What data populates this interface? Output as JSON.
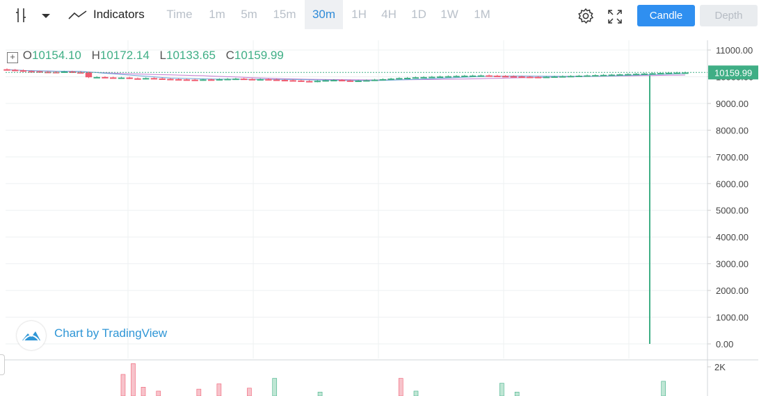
{
  "toolbar": {
    "indicators_label": "Indicators",
    "intervals": [
      "Time",
      "1m",
      "5m",
      "15m",
      "30m",
      "1H",
      "4H",
      "1D",
      "1W",
      "1M"
    ],
    "active_interval": "30m",
    "candle_label": "Candle",
    "depth_label": "Depth"
  },
  "legend": {
    "o_key": "O",
    "o_val": "10154.10",
    "h_key": "H",
    "h_val": "10172.14",
    "l_key": "L",
    "l_val": "10133.65",
    "c_key": "C",
    "c_val": "10159.99"
  },
  "price_axis": {
    "labels": [
      "11000.00",
      "10000.00",
      "9000.00",
      "8000.00",
      "7000.00",
      "6000.00",
      "5000.00",
      "4000.00",
      "3000.00",
      "2000.00",
      "1000.00",
      "0.00"
    ],
    "last_price_label": "10159.99"
  },
  "volume_axis": {
    "label": "2K"
  },
  "branding": {
    "text": "Chart by TradingView"
  },
  "colors": {
    "up": "#3fae85",
    "down": "#ef5a6f",
    "accent": "#2f8ff0",
    "ma1": "#c37bd0",
    "ma2": "#6aa3d8"
  },
  "chart_data": {
    "type": "candlestick",
    "interval": "30m",
    "y_axis": {
      "min": 0,
      "max": 11000
    },
    "last_close": 10159.99,
    "closes": [
      10260,
      10240,
      10210,
      10205,
      10185,
      10180,
      10175,
      10195,
      10170,
      10160,
      9980,
      9990,
      9975,
      9965,
      9970,
      9940,
      9930,
      9950,
      9935,
      9920,
      9910,
      9900,
      9890,
      9880,
      9900,
      9890,
      9910,
      9920,
      9930,
      9915,
      9900,
      9910,
      9895,
      9880,
      9870,
      9860,
      9840,
      9820,
      9850,
      9870,
      9880,
      9860,
      9840,
      9855,
      9870,
      9890,
      9910,
      9930,
      9950,
      9960,
      9980,
      9990,
      10000,
      10010,
      10020,
      10030,
      10040,
      10045,
      10050,
      10040,
      10030,
      10020,
      10010,
      10000,
      9995,
      9990,
      10000,
      10010,
      10020,
      10030,
      10040,
      10050,
      10060,
      10070,
      10080,
      10090,
      10100,
      10110,
      10120,
      10130,
      10140,
      10150,
      10155,
      10160
    ],
    "spike_low": 0,
    "volumes": [
      0,
      0,
      0,
      0,
      0,
      0,
      0,
      0,
      0,
      0,
      0,
      0,
      0,
      0,
      0,
      0,
      0,
      0,
      0,
      0,
      0,
      0,
      0,
      0,
      0,
      0,
      0,
      0,
      0,
      0,
      0,
      0,
      0,
      0,
      0,
      0,
      0,
      0,
      0,
      0,
      0,
      0,
      0,
      0,
      0,
      0,
      0,
      0,
      0,
      0,
      0,
      0,
      0,
      0,
      0,
      0,
      0,
      0,
      0,
      0,
      0,
      0,
      0,
      0,
      0,
      0,
      0,
      0,
      0,
      0,
      0,
      0,
      0,
      0,
      0,
      0,
      0,
      0,
      0,
      0,
      0,
      0,
      0,
      0
    ],
    "volume_bars": [
      {
        "i": 23,
        "v": 1100,
        "up": false
      },
      {
        "i": 25,
        "v": 1650,
        "up": false
      },
      {
        "i": 27,
        "v": 450,
        "up": false
      },
      {
        "i": 30,
        "v": 250,
        "up": false
      },
      {
        "i": 38,
        "v": 350,
        "up": false
      },
      {
        "i": 42,
        "v": 620,
        "up": false
      },
      {
        "i": 48,
        "v": 400,
        "up": false
      },
      {
        "i": 53,
        "v": 900,
        "up": true
      },
      {
        "i": 62,
        "v": 200,
        "up": true
      },
      {
        "i": 78,
        "v": 900,
        "up": false
      },
      {
        "i": 81,
        "v": 250,
        "up": true
      },
      {
        "i": 98,
        "v": 650,
        "up": true
      },
      {
        "i": 101,
        "v": 200,
        "up": true
      },
      {
        "i": 130,
        "v": 750,
        "up": true
      }
    ]
  }
}
